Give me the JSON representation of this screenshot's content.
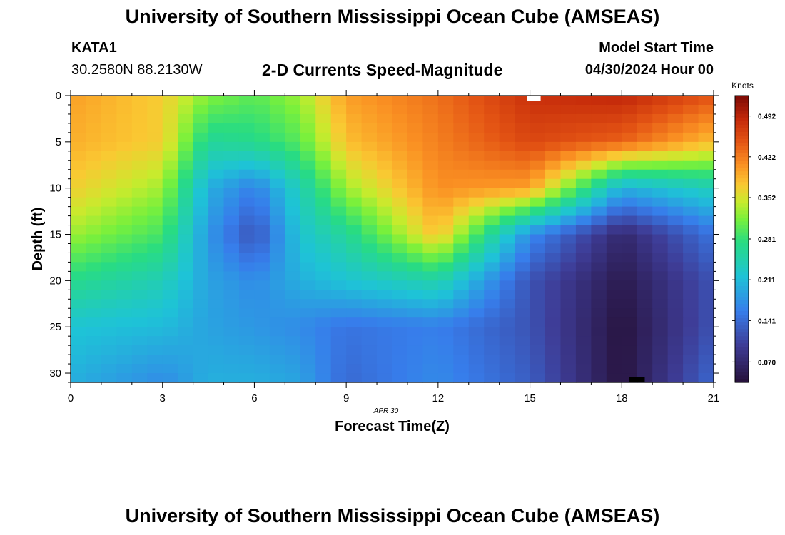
{
  "page": {
    "title_top": "University of Southern Mississippi Ocean Cube (AMSEAS)",
    "title_bottom": "University of Southern Mississippi Ocean Cube (AMSEAS)",
    "station_id": "KATA1",
    "station_coords": "30.2580N  88.2130W",
    "model_start_label": "Model Start Time",
    "model_start_value": "04/30/2024 Hour 00"
  },
  "chart_data": {
    "type": "heatmap",
    "title": "2-D Currents Speed-Magnitude",
    "xlabel": "Forecast Time(Z)",
    "ylabel": "Depth (ft)",
    "date_label": "APR  30",
    "xlim": [
      0,
      21
    ],
    "ylim": [
      0,
      31
    ],
    "x_ticks": [
      "0",
      "3",
      "6",
      "9",
      "12",
      "15",
      "18",
      "21"
    ],
    "y_ticks": [
      "0",
      "5",
      "10",
      "15",
      "20",
      "25",
      "30"
    ],
    "colorbar": {
      "label": "Knots",
      "ticks": [
        "0.070",
        "0.141",
        "0.211",
        "0.281",
        "0.352",
        "0.422",
        "0.492"
      ],
      "min": 0.035,
      "max": 0.527
    },
    "anchor_time_values": [
      0,
      3,
      4.5,
      6,
      7.5,
      9,
      12,
      15,
      18,
      21
    ],
    "anchor_depth_values": [
      0,
      5,
      10,
      15,
      20,
      25,
      31
    ],
    "speed_knots": [
      [
        0.4,
        0.37,
        0.32,
        0.3,
        0.33,
        0.4,
        0.43,
        0.48,
        0.49,
        0.45
      ],
      [
        0.39,
        0.37,
        0.26,
        0.27,
        0.3,
        0.38,
        0.42,
        0.46,
        0.44,
        0.38
      ],
      [
        0.37,
        0.33,
        0.2,
        0.16,
        0.24,
        0.33,
        0.41,
        0.4,
        0.2,
        0.24
      ],
      [
        0.33,
        0.29,
        0.18,
        0.12,
        0.22,
        0.26,
        0.38,
        0.17,
        0.07,
        0.15
      ],
      [
        0.27,
        0.24,
        0.19,
        0.17,
        0.2,
        0.22,
        0.25,
        0.12,
        0.05,
        0.12
      ],
      [
        0.22,
        0.21,
        0.19,
        0.18,
        0.17,
        0.15,
        0.16,
        0.12,
        0.04,
        0.12
      ],
      [
        0.2,
        0.17,
        0.2,
        0.2,
        0.19,
        0.14,
        0.17,
        0.13,
        0.04,
        0.14
      ]
    ]
  }
}
